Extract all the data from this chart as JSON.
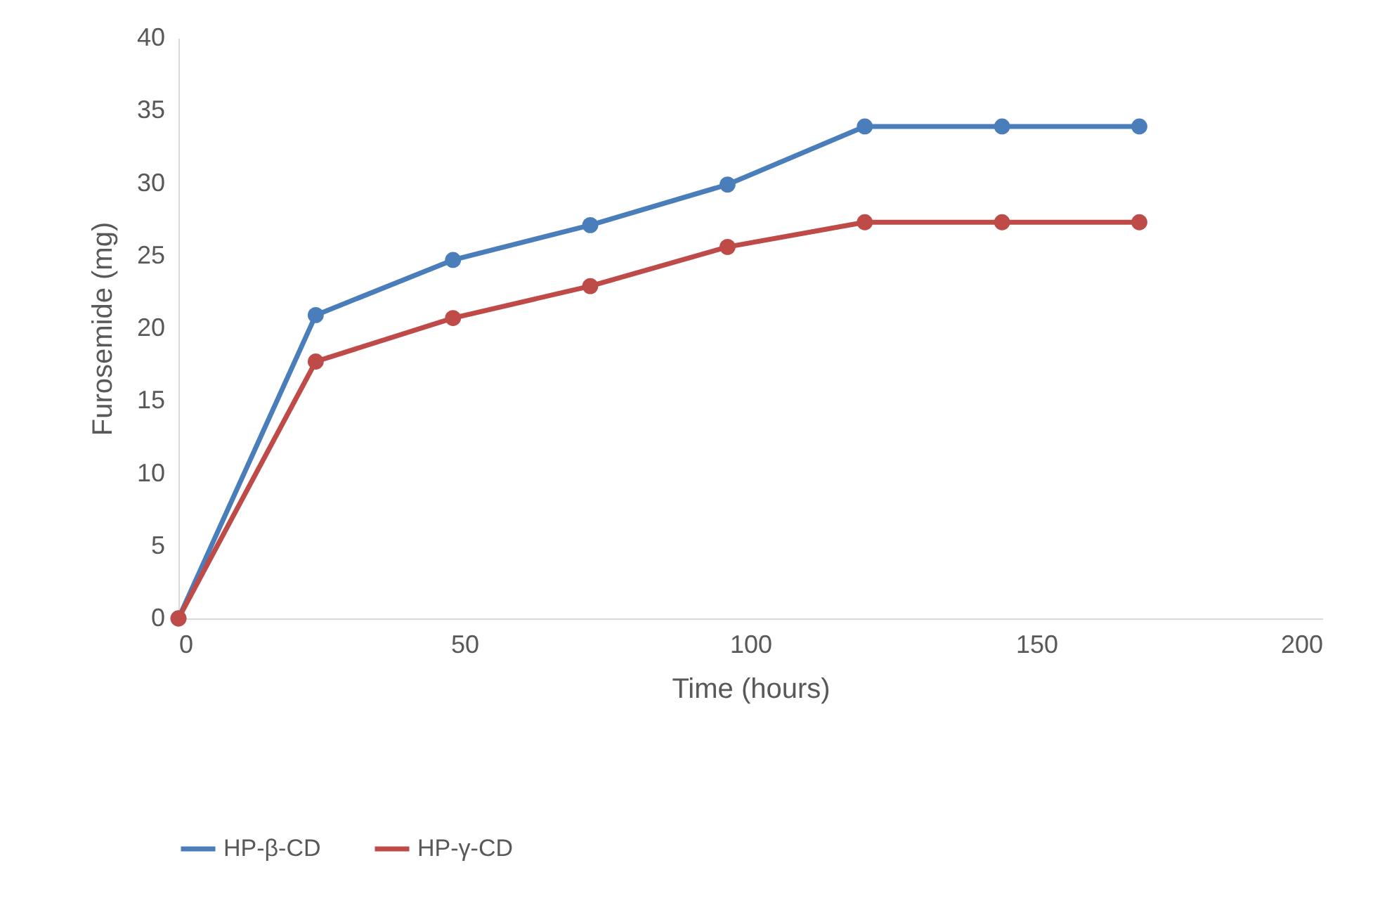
{
  "chart_data": {
    "type": "line",
    "xlabel": "Time (hours)",
    "ylabel": "Furosemide  (mg)",
    "x": [
      0,
      24,
      48,
      72,
      96,
      120,
      144,
      168
    ],
    "series": [
      {
        "name": "HP-β-CD",
        "color": "#4a7ebb",
        "values": [
          0,
          20.9,
          24.7,
          27.1,
          29.9,
          33.9,
          33.9,
          33.9
        ]
      },
      {
        "name": "HP-γ-CD",
        "color": "#be4b48",
        "values": [
          0,
          17.7,
          20.7,
          22.9,
          25.6,
          27.3,
          27.3,
          27.3
        ]
      }
    ],
    "xlim": [
      0,
      200
    ],
    "xticks": [
      0,
      50,
      100,
      150,
      200
    ],
    "ylim": [
      0,
      40
    ],
    "yticks": [
      0,
      5,
      10,
      15,
      20,
      25,
      30,
      35,
      40
    ],
    "grid": false,
    "legend": "bottom",
    "marker": "circle",
    "line_style": "solid"
  }
}
